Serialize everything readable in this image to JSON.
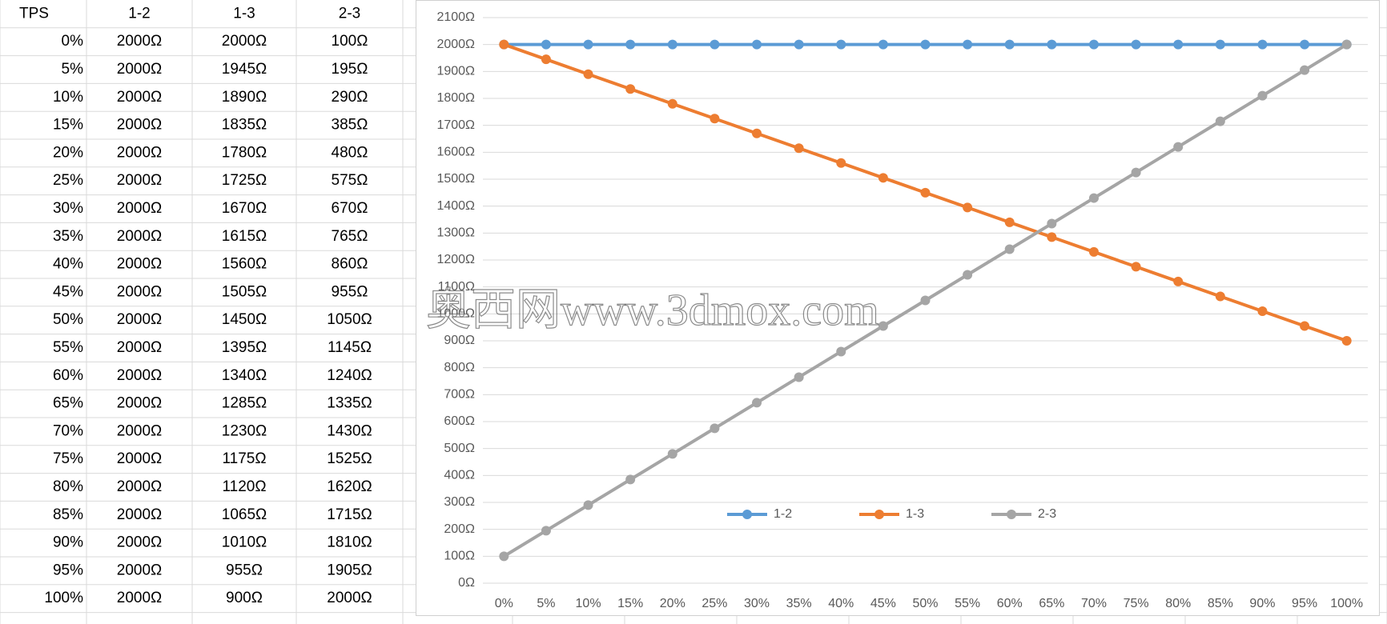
{
  "table": {
    "header": [
      "TPS",
      "1-2",
      "1-3",
      "2-3"
    ],
    "rows": [
      [
        "0%",
        "2000Ω",
        "2000Ω",
        "100Ω"
      ],
      [
        "5%",
        "2000Ω",
        "1945Ω",
        "195Ω"
      ],
      [
        "10%",
        "2000Ω",
        "1890Ω",
        "290Ω"
      ],
      [
        "15%",
        "2000Ω",
        "1835Ω",
        "385Ω"
      ],
      [
        "20%",
        "2000Ω",
        "1780Ω",
        "480Ω"
      ],
      [
        "25%",
        "2000Ω",
        "1725Ω",
        "575Ω"
      ],
      [
        "30%",
        "2000Ω",
        "1670Ω",
        "670Ω"
      ],
      [
        "35%",
        "2000Ω",
        "1615Ω",
        "765Ω"
      ],
      [
        "40%",
        "2000Ω",
        "1560Ω",
        "860Ω"
      ],
      [
        "45%",
        "2000Ω",
        "1505Ω",
        "955Ω"
      ],
      [
        "50%",
        "2000Ω",
        "1450Ω",
        "1050Ω"
      ],
      [
        "55%",
        "2000Ω",
        "1395Ω",
        "1145Ω"
      ],
      [
        "60%",
        "2000Ω",
        "1340Ω",
        "1240Ω"
      ],
      [
        "65%",
        "2000Ω",
        "1285Ω",
        "1335Ω"
      ],
      [
        "70%",
        "2000Ω",
        "1230Ω",
        "1430Ω"
      ],
      [
        "75%",
        "2000Ω",
        "1175Ω",
        "1525Ω"
      ],
      [
        "80%",
        "2000Ω",
        "1120Ω",
        "1620Ω"
      ],
      [
        "85%",
        "2000Ω",
        "1065Ω",
        "1715Ω"
      ],
      [
        "90%",
        "2000Ω",
        "1010Ω",
        "1810Ω"
      ],
      [
        "95%",
        "2000Ω",
        "955Ω",
        "1905Ω"
      ],
      [
        "100%",
        "2000Ω",
        "900Ω",
        "2000Ω"
      ]
    ]
  },
  "chart_data": {
    "type": "line",
    "categories": [
      "0%",
      "5%",
      "10%",
      "15%",
      "20%",
      "25%",
      "30%",
      "35%",
      "40%",
      "45%",
      "50%",
      "55%",
      "60%",
      "65%",
      "70%",
      "75%",
      "80%",
      "85%",
      "90%",
      "95%",
      "100%"
    ],
    "series": [
      {
        "name": "1-2",
        "color": "#5b9bd5",
        "values": [
          2000,
          2000,
          2000,
          2000,
          2000,
          2000,
          2000,
          2000,
          2000,
          2000,
          2000,
          2000,
          2000,
          2000,
          2000,
          2000,
          2000,
          2000,
          2000,
          2000,
          2000
        ]
      },
      {
        "name": "1-3",
        "color": "#ed7d31",
        "values": [
          2000,
          1945,
          1890,
          1835,
          1780,
          1725,
          1670,
          1615,
          1560,
          1505,
          1450,
          1395,
          1340,
          1285,
          1230,
          1175,
          1120,
          1065,
          1010,
          955,
          900
        ]
      },
      {
        "name": "2-3",
        "color": "#a5a5a5",
        "values": [
          100,
          195,
          290,
          385,
          480,
          575,
          670,
          765,
          860,
          955,
          1050,
          1145,
          1240,
          1335,
          1430,
          1525,
          1620,
          1715,
          1810,
          1905,
          2000
        ]
      }
    ],
    "ylim": [
      0,
      2100
    ],
    "yticks": [
      {
        "value": 0,
        "label": "0Ω"
      },
      {
        "value": 100,
        "label": "100Ω"
      },
      {
        "value": 200,
        "label": "200Ω"
      },
      {
        "value": 300,
        "label": "300Ω"
      },
      {
        "value": 400,
        "label": "400Ω"
      },
      {
        "value": 500,
        "label": "500Ω"
      },
      {
        "value": 600,
        "label": "600Ω"
      },
      {
        "value": 700,
        "label": "700Ω"
      },
      {
        "value": 800,
        "label": "800Ω"
      },
      {
        "value": 900,
        "label": "900Ω"
      },
      {
        "value": 1000,
        "label": "1000Ω"
      },
      {
        "value": 1100,
        "label": "1100Ω"
      },
      {
        "value": 1200,
        "label": "1200Ω"
      },
      {
        "value": 1300,
        "label": "1300Ω"
      },
      {
        "value": 1400,
        "label": "1400Ω"
      },
      {
        "value": 1500,
        "label": "1500Ω"
      },
      {
        "value": 1600,
        "label": "1600Ω"
      },
      {
        "value": 1700,
        "label": "1700Ω"
      },
      {
        "value": 1800,
        "label": "1800Ω"
      },
      {
        "value": 1900,
        "label": "1900Ω"
      },
      {
        "value": 2000,
        "label": "2000Ω"
      },
      {
        "value": 2100,
        "label": "2100Ω"
      }
    ],
    "grid": true,
    "legend": "bottom"
  },
  "watermark": "奥西网www.3dmox.com"
}
